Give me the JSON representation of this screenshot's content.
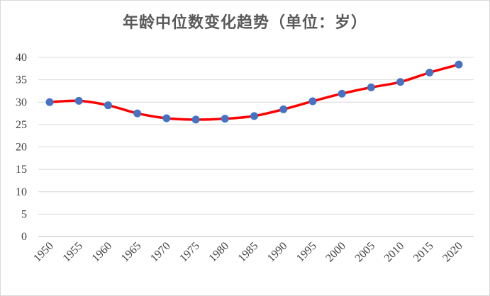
{
  "chart_data": {
    "type": "line",
    "title": "年龄中位数变化趋势（单位：岁）",
    "xlabel": "",
    "ylabel": "",
    "x": [
      "1950",
      "1955",
      "1960",
      "1965",
      "1970",
      "1975",
      "1980",
      "1985",
      "1990",
      "1995",
      "2000",
      "2005",
      "2010",
      "2015",
      "2020"
    ],
    "y_ticks": [
      "0",
      "5",
      "10",
      "15",
      "20",
      "25",
      "30",
      "35",
      "40"
    ],
    "ylim": [
      0,
      40
    ],
    "grid": true,
    "legend": "none",
    "smooth": true,
    "series": [
      {
        "values": [
          30.0,
          30.3,
          29.3,
          27.5,
          26.4,
          26.1,
          26.3,
          26.9,
          28.4,
          30.2,
          31.9,
          33.3,
          34.5,
          36.6,
          38.4
        ]
      }
    ],
    "colors": {
      "line": "#ff0000",
      "marker": "#4472c4",
      "grid": "#d9d9d9",
      "axis": "#bfbfbf"
    }
  }
}
